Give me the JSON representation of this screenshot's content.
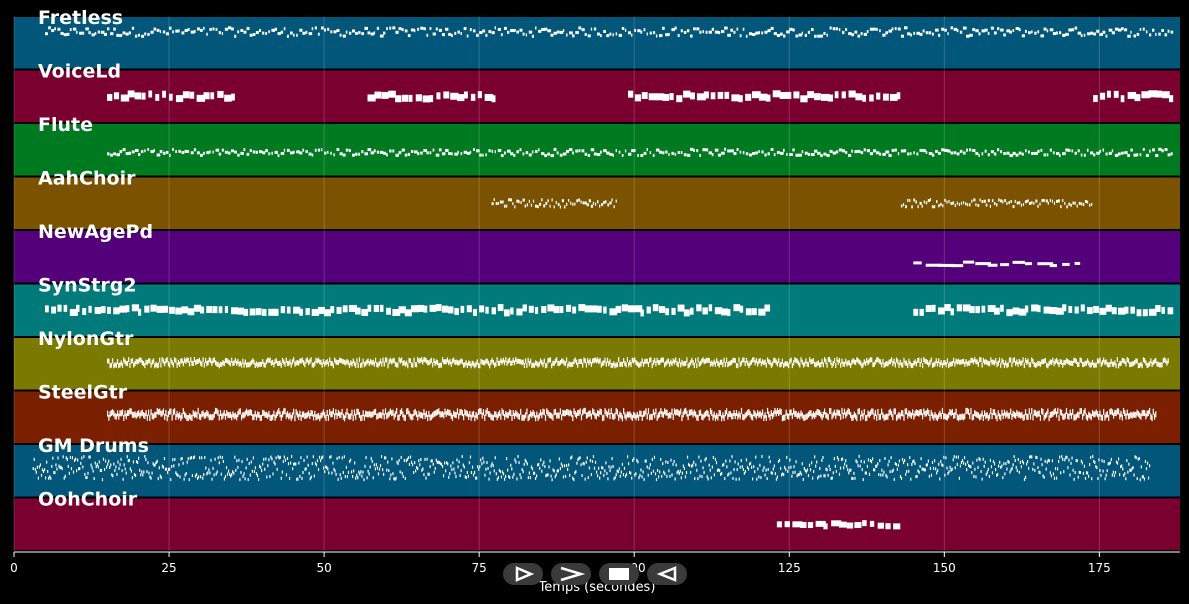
{
  "chart_data": {
    "type": "piano-roll",
    "xlabel": "Temps (secondes)",
    "xlim": [
      0,
      188
    ],
    "xticks": [
      0,
      25,
      50,
      75,
      100,
      125,
      150,
      175
    ],
    "grid": true,
    "tracks": [
      {
        "name": "Fretless",
        "color": "#01567a",
        "regions": [
          [
            5,
            187
          ]
        ],
        "pitch_center": 0.7,
        "pitch_spread": 0.08,
        "note_height": 3,
        "density": 2.0
      },
      {
        "name": "VoiceLd",
        "color": "#7a0030",
        "regions": [
          [
            15,
            36
          ],
          [
            57,
            78
          ],
          [
            99,
            143
          ],
          [
            174,
            187
          ]
        ],
        "pitch_center": 0.5,
        "pitch_spread": 0.05,
        "note_height": 7,
        "density": 0.9
      },
      {
        "name": "Flute",
        "color": "#007a20",
        "regions": [
          [
            15,
            187
          ]
        ],
        "pitch_center": 0.45,
        "pitch_spread": 0.06,
        "note_height": 3,
        "density": 2.0
      },
      {
        "name": "AahChoir",
        "color": "#7a5200",
        "regions": [
          [
            77,
            97
          ],
          [
            143,
            174
          ]
        ],
        "pitch_center": 0.5,
        "pitch_spread": 0.07,
        "note_height": 3,
        "density": 3.0
      },
      {
        "name": "NewAgePd",
        "color": "#54007a",
        "regions": [
          [
            145,
            172
          ]
        ],
        "pitch_center": 0.36,
        "pitch_spread": 0.04,
        "note_height": 3,
        "density": 0.5
      },
      {
        "name": "SynStrg2",
        "color": "#007a7a",
        "regions": [
          [
            5,
            122
          ],
          [
            145,
            187
          ]
        ],
        "pitch_center": 0.5,
        "pitch_spread": 0.05,
        "note_height": 7,
        "density": 1.0
      },
      {
        "name": "NylonGtr",
        "color": "#7a7a00",
        "regions": [
          [
            15,
            186
          ]
        ],
        "pitch_center": 0.52,
        "pitch_spread": 0.06,
        "note_height": 5,
        "density": 5.0
      },
      {
        "name": "SteelGtr",
        "color": "#7a2000",
        "regions": [
          [
            15,
            184
          ]
        ],
        "pitch_center": 0.55,
        "pitch_spread": 0.07,
        "note_height": 6,
        "density": 5.0
      },
      {
        "name": "GM Drums",
        "color": "#01567a",
        "regions": [
          [
            3,
            183
          ]
        ],
        "pitch_center": 0.55,
        "pitch_spread": 0.22,
        "note_height": 3,
        "density": 6.0
      },
      {
        "name": "OohChoir",
        "color": "#7a0030",
        "regions": [
          [
            123,
            143
          ]
        ],
        "pitch_center": 0.5,
        "pitch_spread": 0.04,
        "note_height": 6,
        "density": 0.8
      }
    ]
  },
  "controls": {
    "buttons": [
      {
        "name": "play-button",
        "icon": "play-outline-icon"
      },
      {
        "name": "forward-button",
        "icon": "chevron-right-icon"
      },
      {
        "name": "stop-button",
        "icon": "stop-icon"
      },
      {
        "name": "back-button",
        "icon": "back-triangle-icon"
      }
    ]
  }
}
